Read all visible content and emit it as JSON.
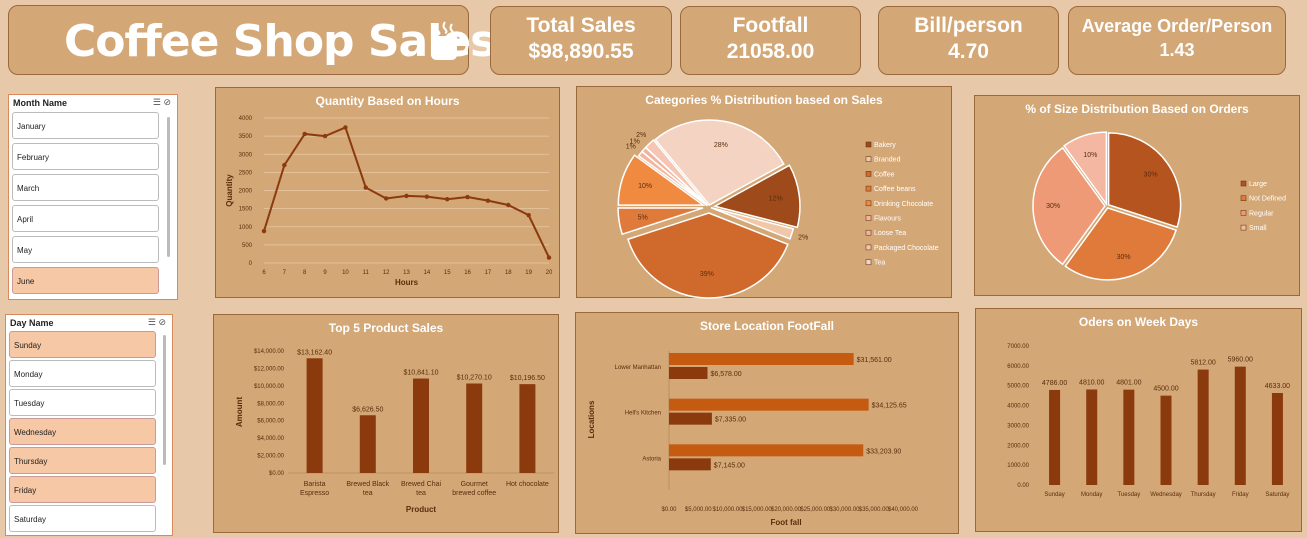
{
  "header": {
    "title": "Coffee Shop Sales"
  },
  "kpis": [
    {
      "label": "Total Sales",
      "value": "$98,890.55"
    },
    {
      "label": "Footfall",
      "value": "21058.00"
    },
    {
      "label": "Bill/person",
      "value": "4.70"
    },
    {
      "label": "Average Order/Person",
      "value": "1.43"
    }
  ],
  "month_slicer": {
    "title": "Month Name",
    "items": [
      {
        "label": "January",
        "selected": false
      },
      {
        "label": "February",
        "selected": false
      },
      {
        "label": "March",
        "selected": false
      },
      {
        "label": "April",
        "selected": false
      },
      {
        "label": "May",
        "selected": false
      },
      {
        "label": "June",
        "selected": true
      }
    ]
  },
  "day_slicer": {
    "title": "Day Name",
    "items": [
      {
        "label": "Sunday",
        "selected": true
      },
      {
        "label": "Monday",
        "selected": false
      },
      {
        "label": "Tuesday",
        "selected": false
      },
      {
        "label": "Wednesday",
        "selected": true
      },
      {
        "label": "Thursday",
        "selected": true
      },
      {
        "label": "Friday",
        "selected": true
      },
      {
        "label": "Saturday",
        "selected": false
      }
    ]
  },
  "colors": {
    "accent": "#8b3a0e",
    "panel": "#d3a776",
    "background": "#e7c9aa",
    "bar_orange": "#c55a11"
  },
  "chart_data": [
    {
      "id": "hours",
      "type": "line",
      "title": "Quantity Based on Hours",
      "xlabel": "Hours",
      "ylabel": "Quantity",
      "x": [
        6,
        7,
        8,
        9,
        10,
        11,
        12,
        13,
        14,
        15,
        16,
        17,
        18,
        19,
        20
      ],
      "values": [
        880,
        2700,
        3560,
        3500,
        3740,
        2080,
        1780,
        1850,
        1830,
        1760,
        1820,
        1720,
        1600,
        1320,
        150
      ],
      "yticks": [
        "0",
        "500",
        "1000",
        "1500",
        "2000",
        "2500",
        "3000",
        "3500",
        "4000"
      ],
      "ylim": [
        0,
        4000
      ],
      "grid": true
    },
    {
      "id": "categories",
      "type": "pie",
      "title": "Categories % Distribution based on Sales",
      "categories": [
        "Bakery",
        "Branded",
        "Coffee",
        "Coffee beans",
        "Drinking Chocolate",
        "Flavours",
        "Loose Tea",
        "Packaged Chocolate",
        "Tea"
      ],
      "values": [
        12,
        2,
        39,
        5,
        10,
        1,
        1,
        2,
        28
      ],
      "labels": [
        "12%",
        "2%",
        "39%",
        "5%",
        "10%",
        "1%",
        "1%",
        "2%",
        "28%"
      ],
      "colors": [
        "#9e4a1a",
        "#f0c8a8",
        "#d06a2c",
        "#e07a3a",
        "#f08a40",
        "#f4b59a",
        "#f0b5a0",
        "#f5c6b3",
        "#f5d3c3"
      ],
      "legend": "right"
    },
    {
      "id": "sizes",
      "type": "pie",
      "title": "% of Size Distribution Based on Orders",
      "categories": [
        "Large",
        "Not Defined",
        "Regular",
        "Small"
      ],
      "values": [
        30,
        30,
        30,
        10
      ],
      "labels": [
        "30%",
        "30%",
        "30%",
        "10%"
      ],
      "colors": [
        "#b5541e",
        "#e07a3a",
        "#ee9a76",
        "#f4b8a2"
      ],
      "legend": "right"
    },
    {
      "id": "products",
      "type": "bar",
      "title": "Top 5 Product Sales",
      "xlabel": "Product",
      "ylabel": "Amount",
      "categories": [
        [
          "Barista",
          "Espresso"
        ],
        [
          "Brewed Black",
          "tea"
        ],
        [
          "Brewed Chai",
          "tea"
        ],
        [
          "Gourmet",
          "brewed coffee"
        ],
        [
          "Hot chocolate"
        ]
      ],
      "values": [
        13162.4,
        6626.5,
        10841.1,
        10270.1,
        10196.5
      ],
      "labels": [
        "$13,162.40",
        "$6,626.50",
        "$10,841.10",
        "$10,270.10",
        "$10,196.50"
      ],
      "yticks": [
        "$0.00",
        "$2,000.00",
        "$4,000.00",
        "$6,000.00",
        "$8,000.00",
        "$10,000.00",
        "$12,000.00",
        "$14,000.00"
      ],
      "ylim": [
        0,
        14000
      ]
    },
    {
      "id": "locations",
      "type": "bar",
      "orientation": "horizontal",
      "title": "Store Location FootFall",
      "xlabel": "Foot fall",
      "ylabel": "Locations",
      "categories": [
        "Lower Manhattan",
        "Hell's Kitchen",
        "Astoria"
      ],
      "series": [
        {
          "values": [
            31561.0,
            34125.65,
            33203.9
          ],
          "labels": [
            "$31,561.00",
            "$34,125.65",
            "$33,203.90"
          ]
        },
        {
          "values": [
            6578.0,
            7335.0,
            7145.0
          ],
          "labels": [
            "$6,578.00",
            "$7,335.00",
            "$7,145.00"
          ]
        }
      ],
      "xticks": [
        "$0.00",
        "$5,000.00",
        "$10,000.00",
        "$15,000.00",
        "$20,000.00",
        "$25,000.00",
        "$30,000.00",
        "$35,000.00",
        "$40,000.00"
      ],
      "xlim": [
        0,
        40000
      ]
    },
    {
      "id": "weekdays",
      "type": "bar",
      "title": "Oders on Week Days",
      "categories": [
        "Sunday",
        "Monday",
        "Tuesday",
        "Wednesday",
        "Thursday",
        "Friday",
        "Saturday"
      ],
      "values": [
        4786.0,
        4810.0,
        4801.0,
        4500.0,
        5812.0,
        5960.0,
        4633.0
      ],
      "labels": [
        "4786.00",
        "4810.00",
        "4801.00",
        "4500.00",
        "5812.00",
        "5960.00",
        "4633.00"
      ],
      "yticks": [
        "0.00",
        "1000.00",
        "2000.00",
        "3000.00",
        "4000.00",
        "5000.00",
        "6000.00",
        "7000.00"
      ],
      "ylim": [
        0,
        7000
      ]
    }
  ]
}
